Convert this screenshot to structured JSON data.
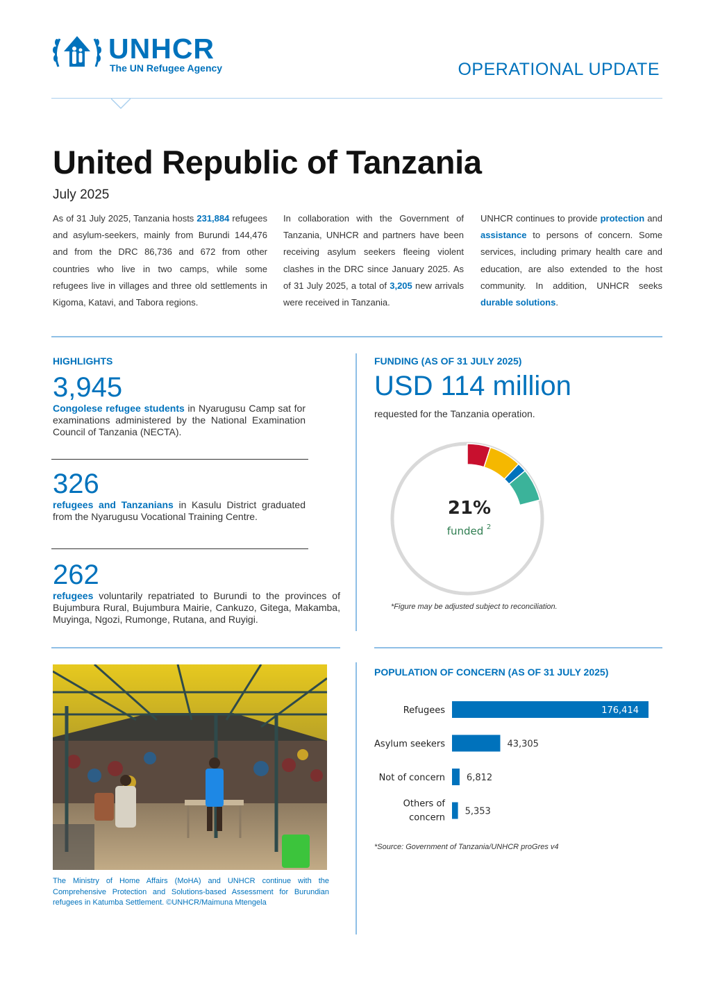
{
  "header": {
    "org_name": "UNHCR",
    "org_subtitle": "The UN Refugee Agency",
    "doc_type": "OPERATIONAL UPDATE"
  },
  "title": "United Republic of Tanzania",
  "date": "July 2025",
  "intro": {
    "col1": {
      "pre": "As of 31 July 2025, Tanzania hosts ",
      "link": "231,884",
      "post": " refugees and asylum-seekers, mainly from Burundi 144,476 and from the DRC 86,736 and 672 from other countries who live in two camps, while some refugees live in villages and three old settlements in Kigoma, Katavi, and Tabora regions."
    },
    "col2": {
      "pre": "In collaboration with the Government of Tanzania, UNHCR and partners have been receiving asylum seekers fleeing violent clashes in the DRC since January 2025. As of 31 July 2025, a total of ",
      "link": "3,205",
      "post": " new arrivals were received in Tanzania."
    },
    "col3": {
      "pre": "UNHCR continues to provide ",
      "link1": "protection",
      "mid1": " and ",
      "link2": "assistance",
      "mid2": " to persons of concern. Some services, including primary health care and education, are also extended to the host community. In addition, UNHCR seeks ",
      "link3": "durable solutions",
      "post": "."
    }
  },
  "highlights": {
    "label": "HIGHLIGHTS",
    "items": [
      {
        "number": "3,945",
        "bold": "Congolese refugee students",
        "text": " in Nyarugusu Camp sat for examinations administered by the National Examination Council of Tanzania (NECTA)."
      },
      {
        "number": "326",
        "bold": "refugees and Tanzanians",
        "text": " in Kasulu District graduated from the Nyarugusu Vocational Training Centre."
      },
      {
        "number": "262",
        "bold": "refugees",
        "text": " voluntarily repatriated to Burundi to the provinces of Bujumbura Rural, Bujumbura Mairie, Cankuzo, Gitega, Makamba, Muyinga, Ngozi, Rumonge, Rutana, and Ruyigi."
      }
    ]
  },
  "funding": {
    "label": "FUNDING (AS OF 31 JULY 2025)",
    "amount": "USD 114 million",
    "subtitle": "requested for the Tanzania operation.",
    "percent_label": "21%",
    "funded_label": "funded",
    "footnote_mark": "2",
    "note": "*Figure may be adjusted subject to reconciliation.",
    "donut": {
      "funded_fraction": 0.21,
      "segments": [
        {
          "fraction": 0.05,
          "color": "#c8102e"
        },
        {
          "fraction": 0.07,
          "color": "#f5b800"
        },
        {
          "fraction": 0.02,
          "color": "#0072bc"
        },
        {
          "fraction": 0.07,
          "color": "#3bb39a"
        }
      ],
      "ring_color": "#d9d9d9"
    }
  },
  "photo": {
    "caption": "The Ministry of Home Affairs (MoHA) and UNHCR continue with the Comprehensive Protection and Solutions-based Assessment for Burundian refugees in Katumba Settlement. ©UNHCR/Maimuna Mtengela"
  },
  "population": {
    "label": "POPULATION OF CONCERN (AS OF 31 JULY 2025)",
    "source": "*Source: Government of Tanzania/UNHCR proGres v4"
  },
  "chart_data": {
    "type": "bar",
    "orientation": "horizontal",
    "categories": [
      "Refugees",
      "Asylum seekers",
      "Not of concern",
      "Others of concern"
    ],
    "values": [
      176414,
      43305,
      6812,
      5353
    ],
    "value_labels": [
      "176,414",
      "43,305",
      "6,812",
      "5,353"
    ],
    "bar_color": "#0072bc",
    "xlim": [
      0,
      176414
    ],
    "grid": false,
    "legend": "none"
  }
}
